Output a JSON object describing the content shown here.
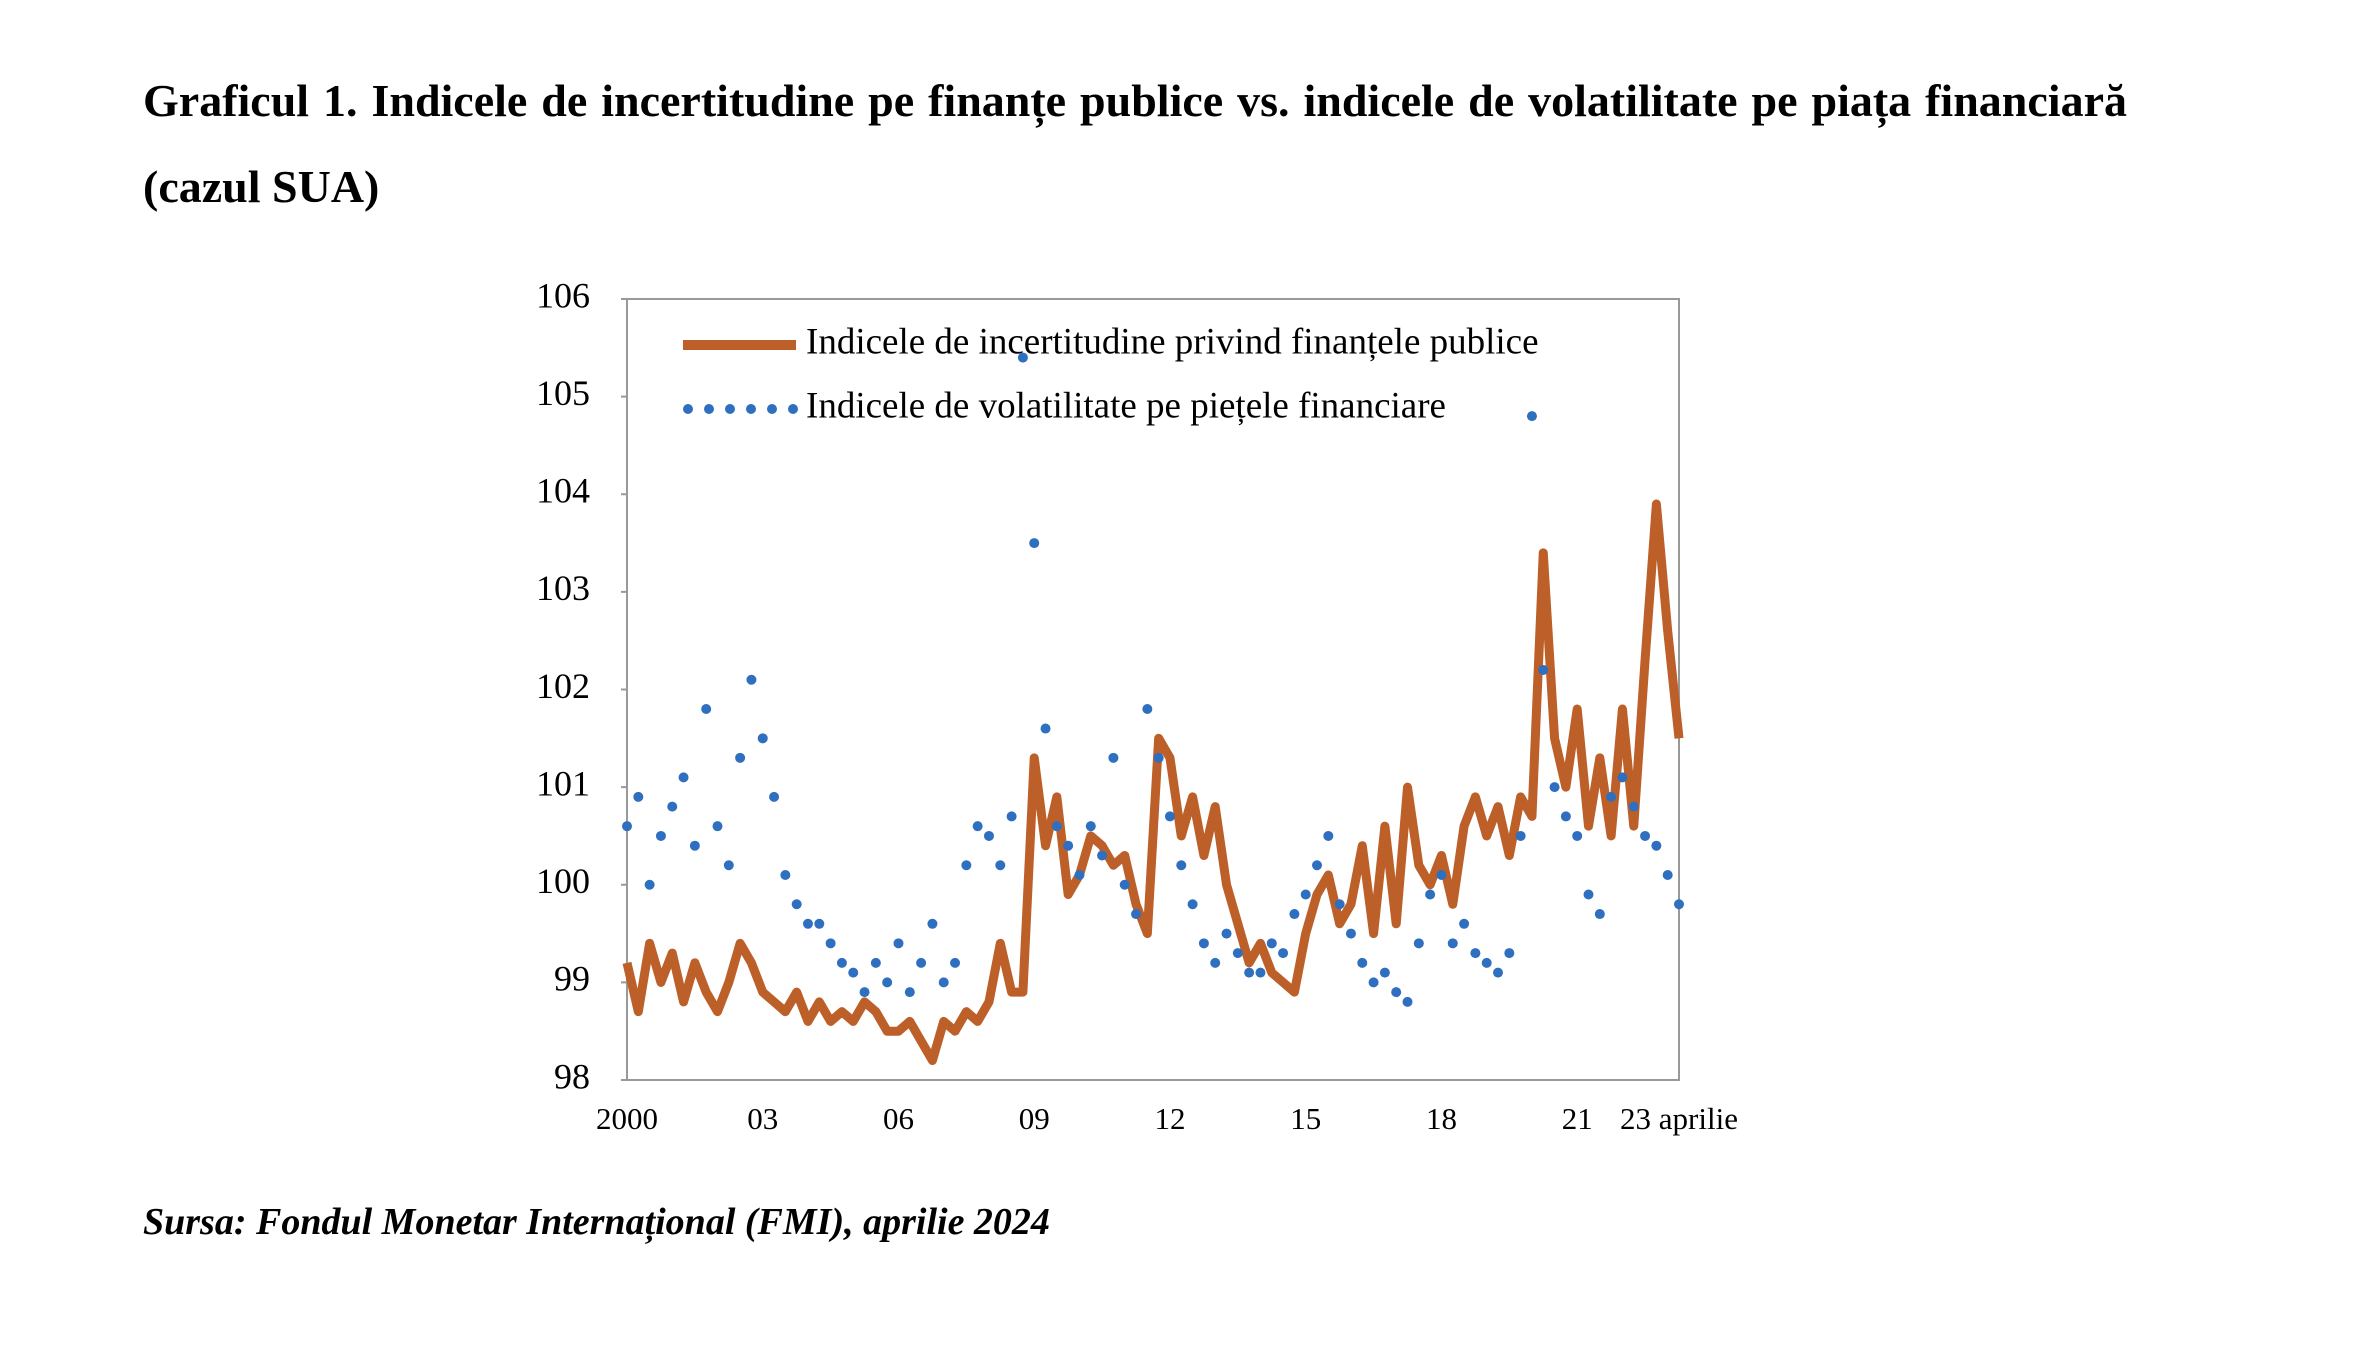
{
  "chart_data": {
    "type": "line",
    "title": "Graficul 1. Indicele de incertitudine pe finanțe publice vs. indicele de volatilitate pe piața financiară (cazul SUA)",
    "source": "Sursa: Fondul Monetar Internațional (FMI), aprilie 2024",
    "categories": [
      "2000",
      null,
      null,
      null,
      null,
      null,
      null,
      null,
      null,
      null,
      null,
      null,
      "03",
      null,
      null,
      null,
      null,
      null,
      null,
      null,
      null,
      null,
      null,
      null,
      "06",
      null,
      null,
      null,
      null,
      null,
      null,
      null,
      null,
      null,
      null,
      null,
      "09",
      null,
      null,
      null,
      null,
      null,
      null,
      null,
      null,
      null,
      null,
      null,
      "12",
      null,
      null,
      null,
      null,
      null,
      null,
      null,
      null,
      null,
      null,
      null,
      "15",
      null,
      null,
      null,
      null,
      null,
      null,
      null,
      null,
      null,
      null,
      null,
      "18",
      null,
      null,
      null,
      null,
      null,
      null,
      null,
      null,
      null,
      null,
      null,
      "21",
      null,
      null,
      null,
      null,
      null,
      null,
      null,
      null,
      "23 aprilie"
    ],
    "series": [
      {
        "name": "Indicele de incertitudine privind finanțele publice",
        "color": "#bd5f28",
        "style": "solid",
        "values": [
          99.2,
          98.7,
          99.4,
          99.0,
          99.3,
          98.8,
          99.2,
          98.9,
          98.7,
          99.0,
          99.4,
          99.2,
          98.9,
          98.8,
          98.7,
          98.9,
          98.6,
          98.8,
          98.6,
          98.7,
          98.6,
          98.8,
          98.7,
          98.5,
          98.5,
          98.6,
          98.4,
          98.2,
          98.6,
          98.5,
          98.7,
          98.6,
          98.8,
          99.4,
          98.9,
          98.9,
          101.3,
          100.4,
          100.9,
          99.9,
          100.1,
          100.5,
          100.4,
          100.2,
          100.3,
          99.8,
          99.5,
          101.5,
          101.3,
          100.5,
          100.9,
          100.3,
          100.8,
          100.0,
          99.6,
          99.2,
          99.4,
          99.1,
          99.0,
          98.9,
          99.5,
          99.9,
          100.1,
          99.6,
          99.8,
          100.4,
          99.5,
          100.6,
          99.6,
          101.0,
          100.2,
          100.0,
          100.3,
          99.8,
          100.6,
          100.9,
          100.5,
          100.8,
          100.3,
          100.9,
          100.7,
          103.4,
          101.5,
          101.0,
          101.8,
          100.6,
          101.3,
          100.5,
          101.8,
          100.6,
          102.3,
          103.9,
          102.6,
          101.5
        ]
      },
      {
        "name": "Indicele de volatilitate pe piețele financiare",
        "color": "#2f6fbf",
        "style": "dotted",
        "values": [
          100.6,
          100.9,
          100.0,
          100.5,
          100.8,
          101.1,
          100.4,
          101.8,
          100.6,
          100.2,
          101.3,
          102.1,
          101.5,
          100.9,
          100.1,
          99.8,
          99.6,
          99.6,
          99.4,
          99.2,
          99.1,
          98.9,
          99.2,
          99.0,
          99.4,
          98.9,
          99.2,
          99.6,
          99.0,
          99.2,
          100.2,
          100.6,
          100.5,
          100.2,
          100.7,
          105.4,
          103.5,
          101.6,
          100.6,
          100.4,
          100.1,
          100.6,
          100.3,
          101.3,
          100.0,
          99.7,
          101.8,
          101.3,
          100.7,
          100.2,
          99.8,
          99.4,
          99.2,
          99.5,
          99.3,
          99.1,
          99.1,
          99.4,
          99.3,
          99.7,
          99.9,
          100.2,
          100.5,
          99.8,
          99.5,
          99.2,
          99.0,
          99.1,
          98.9,
          98.8,
          99.4,
          99.9,
          100.1,
          99.4,
          99.6,
          99.3,
          99.2,
          99.1,
          99.3,
          100.5,
          104.8,
          102.2,
          101.0,
          100.7,
          100.5,
          99.9,
          99.7,
          100.9,
          101.1,
          100.8,
          100.5,
          100.4,
          100.1,
          99.8
        ]
      }
    ],
    "ylim": [
      98,
      106
    ],
    "yticks": [
      98,
      99,
      100,
      101,
      102,
      103,
      104,
      105,
      106
    ]
  }
}
